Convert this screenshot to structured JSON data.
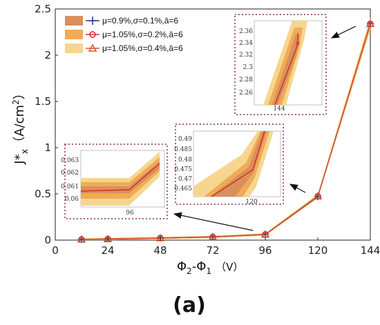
{
  "chart_data": {
    "type": "line",
    "panel_label": "(a)",
    "ylabel_main": "J",
    "ylabel_star": "*",
    "ylabel_sub": "x",
    "ylabel_unit": "（A/cm",
    "ylabel_unit_sup": "2",
    "ylabel_unit_end": "）",
    "xlabel_phi1": "Φ",
    "xlabel_sub1": "2",
    "xlabel_dash": "-Φ",
    "xlabel_sub2": "1",
    "xlabel_unit": "（V）",
    "xlim": [
      0,
      144
    ],
    "ylim": [
      0,
      2.5
    ],
    "x_ticks": [
      "0",
      "24",
      "48",
      "72",
      "96",
      "120",
      "144"
    ],
    "y_ticks": [
      "0",
      "0.5",
      "1",
      "1.5",
      "2",
      "2.5"
    ],
    "x": [
      12,
      24,
      48,
      72,
      96,
      120,
      144
    ],
    "series": [
      {
        "name": "μ=0.9%,σ=0.1%,â=6",
        "values": [
          0.007,
          0.012,
          0.022,
          0.034,
          0.061,
          0.47,
          2.34
        ],
        "color": "#1f3f8f",
        "marker": "plus",
        "band_color": "#d9905a"
      },
      {
        "name": "μ=1.05%,σ=0.2%,â=6",
        "values": [
          0.008,
          0.013,
          0.023,
          0.035,
          0.062,
          0.475,
          2.34
        ],
        "color": "#d62a2a",
        "marker": "circle",
        "band_color": "#f0ab55"
      },
      {
        "name": "μ=1.05%,σ=0.4%,â=6",
        "values": [
          0.008,
          0.013,
          0.023,
          0.035,
          0.062,
          0.475,
          2.34
        ],
        "color": "#d9532a",
        "marker": "triangle",
        "band_color": "#f6d68f"
      }
    ],
    "insets": [
      {
        "x_tick": "96",
        "y_ticks": [
          "0.063",
          "0.062",
          "0.061",
          "0.06"
        ]
      },
      {
        "x_tick": "120",
        "y_ticks": [
          "0.49",
          "0.485",
          "0.48",
          "0.475",
          "0.47",
          "0.465"
        ]
      },
      {
        "x_tick": "144",
        "y_ticks": [
          "2.36",
          "2.34",
          "2.32",
          "2.3",
          "2.28",
          "2.26"
        ]
      }
    ]
  }
}
